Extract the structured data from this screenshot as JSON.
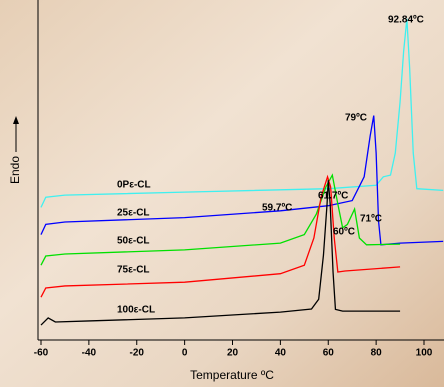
{
  "chart_data": {
    "type": "line",
    "x_label": "Temperature ºC",
    "y_label": "Endo",
    "xlim": [
      -61.25,
      108.35
    ],
    "xticks": [
      -60,
      -40,
      -20,
      0,
      20,
      40,
      60,
      80,
      100
    ],
    "ylim": [
      0,
      100
    ],
    "series": [
      {
        "name": "0Pε-CL",
        "color": "#3ff0f0",
        "x": [
          -60,
          -58,
          -50,
          0,
          60,
          80,
          83,
          86,
          88,
          90,
          91.5,
          92.84,
          94,
          95.5,
          97,
          108
        ],
        "values": [
          39,
          42,
          42.6,
          43.5,
          44.5,
          45.5,
          48,
          48.5,
          55,
          70,
          85,
          94.5,
          80,
          55,
          44.5,
          44
        ]
      },
      {
        "name": "25ε-CL",
        "color": "#0000ff",
        "x": [
          -60,
          -58,
          -50,
          0,
          40,
          60,
          70,
          75,
          77.5,
          79,
          80,
          81,
          82,
          90,
          108
        ],
        "values": [
          31,
          34,
          34.7,
          36,
          38,
          39.5,
          41,
          48,
          60,
          66,
          55,
          35,
          28,
          28.5,
          29
        ]
      },
      {
        "name": "50ε-CL",
        "color": "#00e000",
        "x": [
          -60,
          -58,
          -50,
          0,
          40,
          50,
          55,
          59,
          61.7,
          64,
          66,
          68,
          71,
          73,
          76,
          90
        ],
        "values": [
          22,
          24.7,
          25.3,
          26.5,
          28.5,
          31,
          37,
          45,
          48.5,
          40,
          33,
          34,
          38.5,
          30,
          28,
          28.2
        ]
      },
      {
        "name": "75ε-CL",
        "color": "#ff0000",
        "x": [
          -60,
          -58,
          -50,
          0,
          40,
          50,
          54,
          57,
          59.7,
          61,
          62.5,
          64,
          67,
          90
        ],
        "values": [
          12.6,
          15.3,
          15.9,
          17,
          19.5,
          22,
          30,
          42,
          48,
          45,
          30,
          20,
          20.3,
          21.5
        ]
      },
      {
        "name": "100ε-CL",
        "color": "#000000",
        "x": [
          -60,
          -57,
          -54,
          -40,
          0,
          40,
          53,
          56,
          58,
          59.5,
          60,
          60.8,
          62,
          63,
          66,
          90
        ],
        "values": [
          4.4,
          6.5,
          5.3,
          5.6,
          6.5,
          8.2,
          9.1,
          12,
          25,
          40,
          47,
          40,
          20,
          9,
          8.5,
          8.5
        ]
      }
    ],
    "annotations": [
      "92.84ºC",
      "79ºC",
      "61.7ºC",
      "59.7ºC",
      "71ºC",
      "60ºC"
    ]
  }
}
